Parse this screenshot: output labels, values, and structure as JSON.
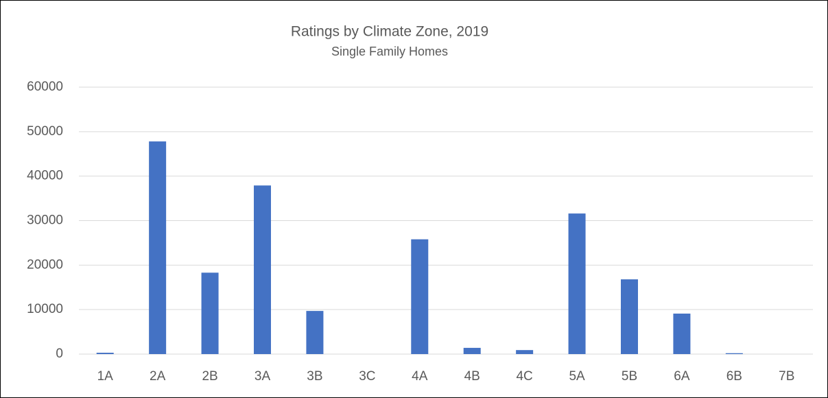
{
  "chart_data": {
    "type": "bar",
    "title": "Ratings by Climate Zone, 2019",
    "subtitle": "Single Family Homes",
    "categories": [
      "1A",
      "2A",
      "2B",
      "3A",
      "3B",
      "3C",
      "4A",
      "4B",
      "4C",
      "5A",
      "5B",
      "6A",
      "6B",
      "7B"
    ],
    "values": [
      300,
      47800,
      18300,
      37900,
      9700,
      0,
      25800,
      1400,
      900,
      31600,
      16800,
      9100,
      200,
      0
    ],
    "color": "#4472c4",
    "ylim": [
      0,
      60000
    ],
    "yticks": [
      0,
      10000,
      20000,
      30000,
      40000,
      50000,
      60000
    ],
    "grid": true
  }
}
